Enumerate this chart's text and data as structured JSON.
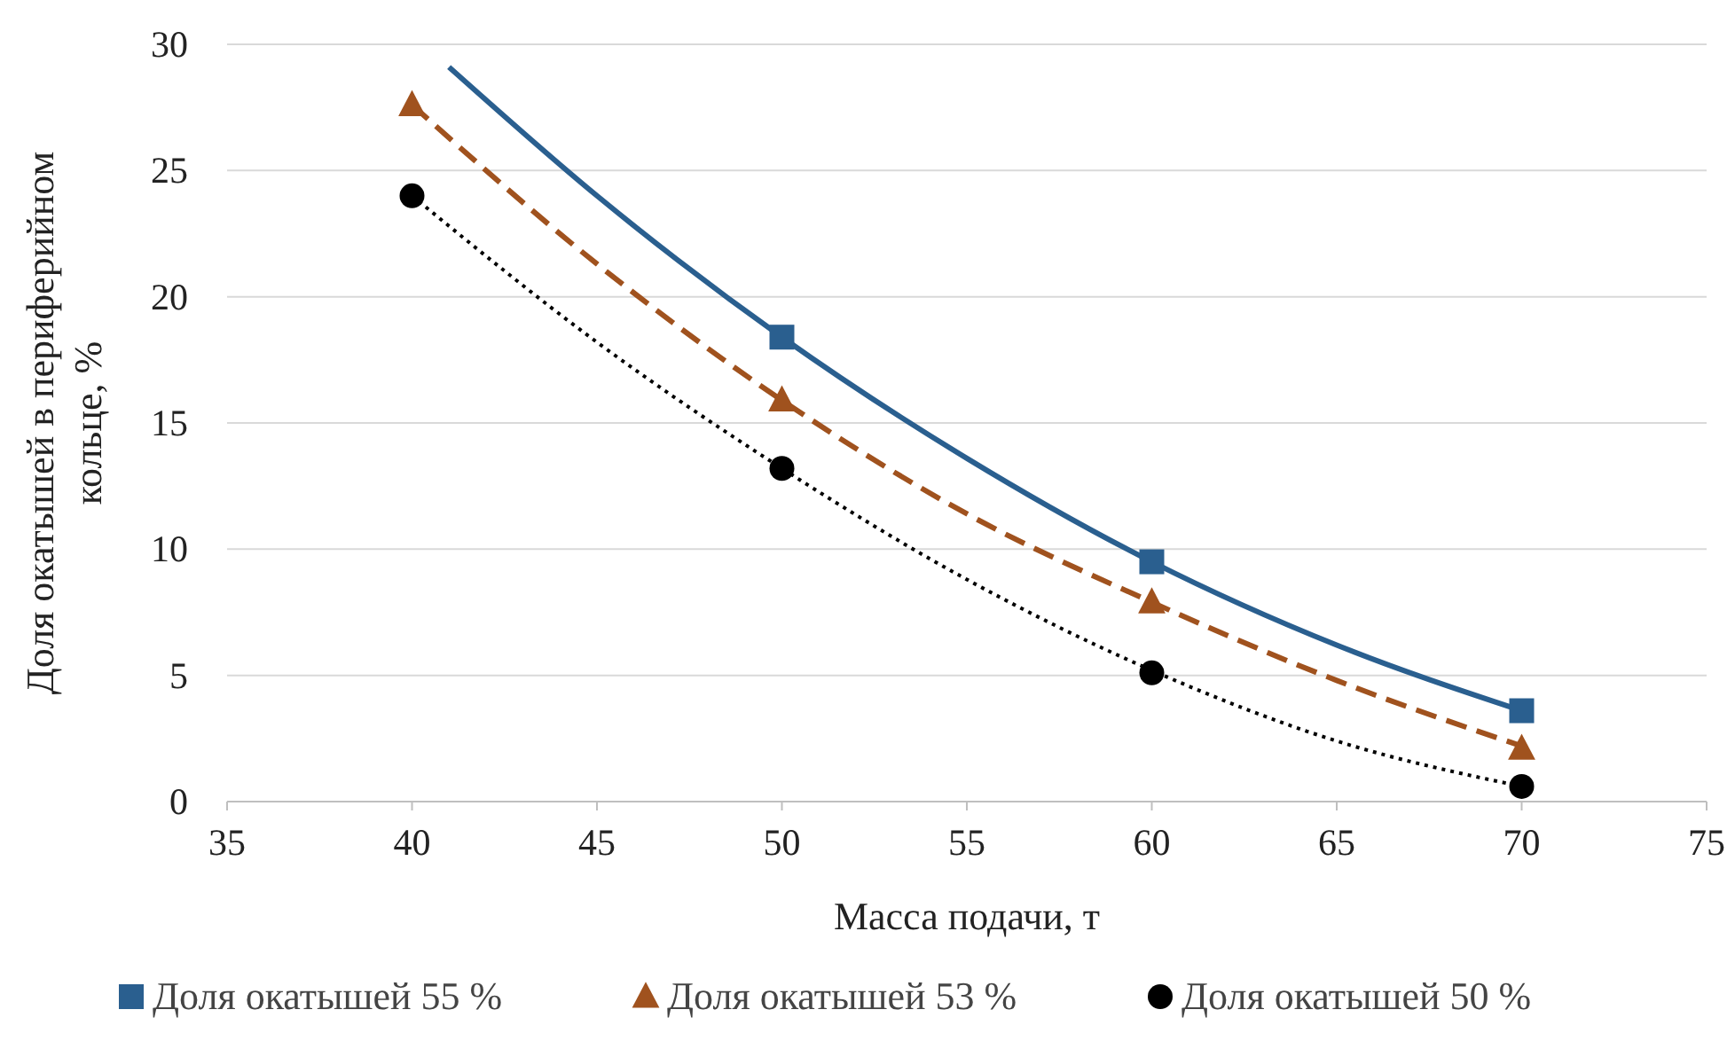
{
  "chart_data": {
    "type": "scatter",
    "xlabel": "Масса подачи, т",
    "ylabel": "Доля окатышей в периферийном кольце, %",
    "xlim": [
      35,
      75
    ],
    "xticks": [
      35,
      40,
      45,
      50,
      55,
      60,
      65,
      70,
      75
    ],
    "ylim": [
      0,
      30
    ],
    "yticks": [
      0,
      5,
      10,
      15,
      20,
      25,
      30
    ],
    "grid": "y",
    "legend": "bottom",
    "series": [
      {
        "name": "Доля окатышей 55 %",
        "type": "scatter",
        "marker": "square",
        "color": "#2a5f8f",
        "x": [
          50,
          60,
          70
        ],
        "values": [
          18.4,
          9.5,
          3.6
        ]
      },
      {
        "name": "Доля окатышей 53 %",
        "type": "scatter",
        "marker": "triangle",
        "color": "#a0521e",
        "x": [
          40,
          50,
          60,
          70
        ],
        "values": [
          27.6,
          15.9,
          7.9,
          2.1
        ]
      },
      {
        "name": "Доля окатышей 50 %",
        "type": "scatter",
        "marker": "circle",
        "color": "#000000",
        "x": [
          40,
          50,
          60,
          70
        ],
        "values": [
          24.0,
          13.2,
          5.1,
          0.6
        ]
      },
      {
        "type": "line",
        "line_style": "solid",
        "marker": "none",
        "color": "#2a5f8f",
        "x": [
          41,
          45,
          50,
          55,
          60,
          65,
          70
        ],
        "values": [
          29.1,
          24.0,
          18.4,
          13.6,
          9.5,
          6.2,
          3.6
        ]
      },
      {
        "type": "line",
        "line_style": "dashed",
        "marker": "none",
        "color": "#a0521e",
        "x": [
          40,
          45,
          50,
          55,
          60,
          65,
          70
        ],
        "values": [
          27.6,
          21.3,
          15.9,
          11.4,
          7.9,
          4.8,
          2.2
        ]
      },
      {
        "type": "line",
        "line_style": "dotted",
        "marker": "none",
        "color": "#000000",
        "x": [
          40,
          45,
          50,
          55,
          60,
          65,
          70
        ],
        "values": [
          24.0,
          18.2,
          13.2,
          8.8,
          5.2,
          2.4,
          0.6
        ]
      }
    ]
  }
}
